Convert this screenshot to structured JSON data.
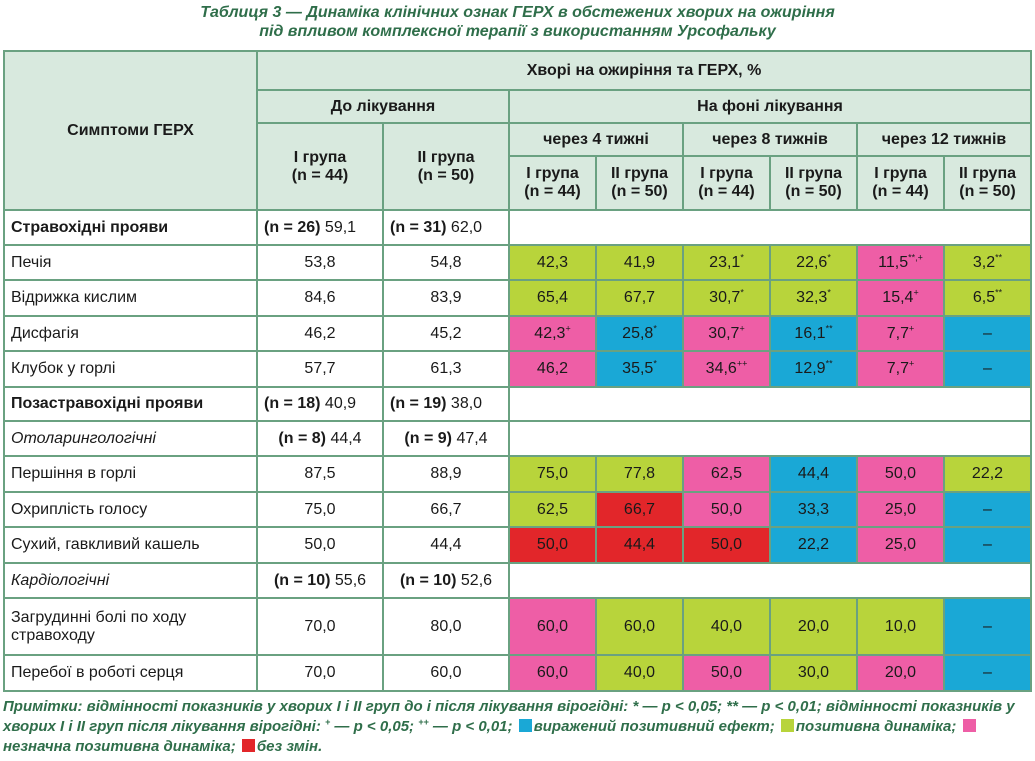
{
  "title": {
    "line1": "Таблиця 3 — Динаміка клінічних ознак ГЕРХ в обстежених хворих на ожиріння",
    "line2": "під впливом комплексної терапії з використанням Урсофальку"
  },
  "header": {
    "symptoms": "Симптоми ГЕРХ",
    "patients": "Хворі на ожиріння та ГЕРХ, %",
    "before": "До лікування",
    "during": "На фоні лікування",
    "week4": "через 4 тижні",
    "week8": "через 8 тижнів",
    "week12": "через 12 тижнів",
    "group1": "I група",
    "group2": "II група",
    "n1": "(n = 44)",
    "n2": "(n = 50)"
  },
  "colors": {
    "pronounced": "#1aa8d6",
    "positive": "#b8d43b",
    "slight": "#ee5ea6",
    "none": "#e2262a"
  },
  "rows": [
    {
      "symptom": "Стравохідні прояви",
      "n1": "(n = 26)",
      "v1": "59,1",
      "n2": "(n = 31)",
      "v2": "62,0"
    },
    {
      "symptom": "Печія",
      "before1": "53,8",
      "before2": "54,8",
      "cells": [
        {
          "v": "42,3",
          "s": ""
        },
        {
          "v": "41,9",
          "s": ""
        },
        {
          "v": "23,1",
          "s": "*"
        },
        {
          "v": "22,6",
          "s": "*"
        },
        {
          "v": "11,5",
          "s": "**,+"
        },
        {
          "v": "3,2",
          "s": "**"
        }
      ]
    },
    {
      "symptom": "Відрижка кислим",
      "before1": "84,6",
      "before2": "83,9",
      "cells": [
        {
          "v": "65,4",
          "s": ""
        },
        {
          "v": "67,7",
          "s": ""
        },
        {
          "v": "30,7",
          "s": "*"
        },
        {
          "v": "32,3",
          "s": "*"
        },
        {
          "v": "15,4",
          "s": "+"
        },
        {
          "v": "6,5",
          "s": "**"
        }
      ]
    },
    {
      "symptom": "Дисфагія",
      "before1": "46,2",
      "before2": "45,2",
      "cells": [
        {
          "v": "42,3",
          "s": "+"
        },
        {
          "v": "25,8",
          "s": "*"
        },
        {
          "v": "30,7",
          "s": "+"
        },
        {
          "v": "16,1",
          "s": "**"
        },
        {
          "v": "7,7",
          "s": "+"
        },
        {
          "v": "–",
          "s": ""
        }
      ]
    },
    {
      "symptom": "Клубок у горлі",
      "before1": "57,7",
      "before2": "61,3",
      "cells": [
        {
          "v": "46,2",
          "s": ""
        },
        {
          "v": "35,5",
          "s": "*"
        },
        {
          "v": "34,6",
          "s": "++"
        },
        {
          "v": "12,9",
          "s": "**"
        },
        {
          "v": "7,7",
          "s": "+"
        },
        {
          "v": "–",
          "s": ""
        }
      ]
    },
    {
      "symptom": "Позастравохідні прояви",
      "n1": "(n = 18)",
      "v1": "40,9",
      "n2": "(n = 19)",
      "v2": "38,0"
    },
    {
      "symptom": "Отоларингологічні",
      "n1": "(n = 8)",
      "v1": "44,4",
      "n2": "(n = 9)",
      "v2": "47,4"
    },
    {
      "symptom": "Першіння в горлі",
      "before1": "87,5",
      "before2": "88,9",
      "cells": [
        {
          "v": "75,0",
          "s": ""
        },
        {
          "v": "77,8",
          "s": ""
        },
        {
          "v": "62,5",
          "s": ""
        },
        {
          "v": "44,4",
          "s": ""
        },
        {
          "v": "50,0",
          "s": ""
        },
        {
          "v": "22,2",
          "s": ""
        }
      ]
    },
    {
      "symptom": "Охриплість голосу",
      "before1": "75,0",
      "before2": "66,7",
      "cells": [
        {
          "v": "62,5",
          "s": ""
        },
        {
          "v": "66,7",
          "s": ""
        },
        {
          "v": "50,0",
          "s": ""
        },
        {
          "v": "33,3",
          "s": ""
        },
        {
          "v": "25,0",
          "s": ""
        },
        {
          "v": "–",
          "s": ""
        }
      ]
    },
    {
      "symptom": "Сухий, гавкливий кашель",
      "before1": "50,0",
      "before2": "44,4",
      "cells": [
        {
          "v": "50,0",
          "s": ""
        },
        {
          "v": "44,4",
          "s": ""
        },
        {
          "v": "50,0",
          "s": ""
        },
        {
          "v": "22,2",
          "s": ""
        },
        {
          "v": "25,0",
          "s": ""
        },
        {
          "v": "–",
          "s": ""
        }
      ]
    },
    {
      "symptom": "Кардіологічні",
      "n1": "(n = 10)",
      "v1": "55,6",
      "n2": "(n = 10)",
      "v2": "52,6"
    },
    {
      "symptom_l1": "Загрудинні болі по ходу",
      "symptom_l2": "стравоходу",
      "before1": "70,0",
      "before2": "80,0",
      "cells": [
        {
          "v": "60,0",
          "s": ""
        },
        {
          "v": "60,0",
          "s": ""
        },
        {
          "v": "40,0",
          "s": ""
        },
        {
          "v": "20,0",
          "s": ""
        },
        {
          "v": "10,0",
          "s": ""
        },
        {
          "v": "–",
          "s": ""
        }
      ]
    },
    {
      "symptom": "Перебої в роботі серця",
      "before1": "70,0",
      "before2": "60,0",
      "cells": [
        {
          "v": "60,0",
          "s": ""
        },
        {
          "v": "40,0",
          "s": ""
        },
        {
          "v": "50,0",
          "s": ""
        },
        {
          "v": "30,0",
          "s": ""
        },
        {
          "v": "20,0",
          "s": ""
        },
        {
          "v": "–",
          "s": ""
        }
      ]
    }
  ],
  "notes": {
    "part1": "Примітки: відмінності показників у хворих I і II груп до і після лікування вірогідні: * — р < 0,05; ** — р < 0,01;",
    "part2": "відмінності показників у хворих I і II груп після лікування вірогідні: ",
    "s1": "+",
    "t1": " — р < 0,05; ",
    "s2": "++",
    "t2": " — р < 0,01;",
    "legend1": "виражений",
    "legend1b": "позитивний ефект;",
    "legend2": "позитивна динаміка;",
    "legend3": "незначна позитивна динаміка;",
    "legend4": "без змін."
  }
}
